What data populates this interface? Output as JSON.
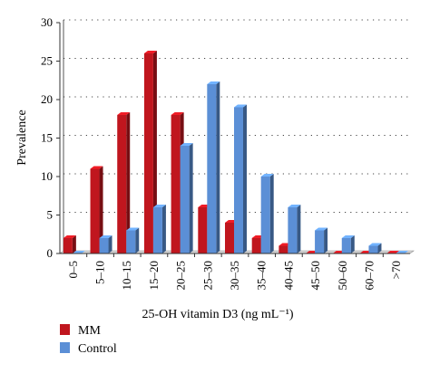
{
  "chart_data": {
    "type": "bar",
    "categories": [
      "0–5",
      "5–10",
      "10–15",
      "15–20",
      "20–25",
      "25–30",
      "30–35",
      "35–40",
      "40–45",
      "45–50",
      "50–60",
      "60–70",
      ">70"
    ],
    "series": [
      {
        "name": "MM",
        "values": [
          2,
          11,
          18,
          26,
          18,
          6,
          4,
          2,
          1,
          0,
          0,
          0,
          0
        ],
        "color": "#c0161e"
      },
      {
        "name": "Control",
        "values": [
          0,
          2,
          3,
          6,
          14,
          22,
          19,
          10,
          6,
          3,
          2,
          1,
          0
        ],
        "color": "#5b8fd6"
      }
    ],
    "xlabel": "25-OH vitamin D3 (ng mL⁻¹)",
    "ylabel": "Prevalence",
    "ylim": [
      0,
      30
    ],
    "yticks": [
      0,
      5,
      10,
      15,
      20,
      25,
      30
    ],
    "grid": true,
    "legend_position": "bottom-left"
  }
}
